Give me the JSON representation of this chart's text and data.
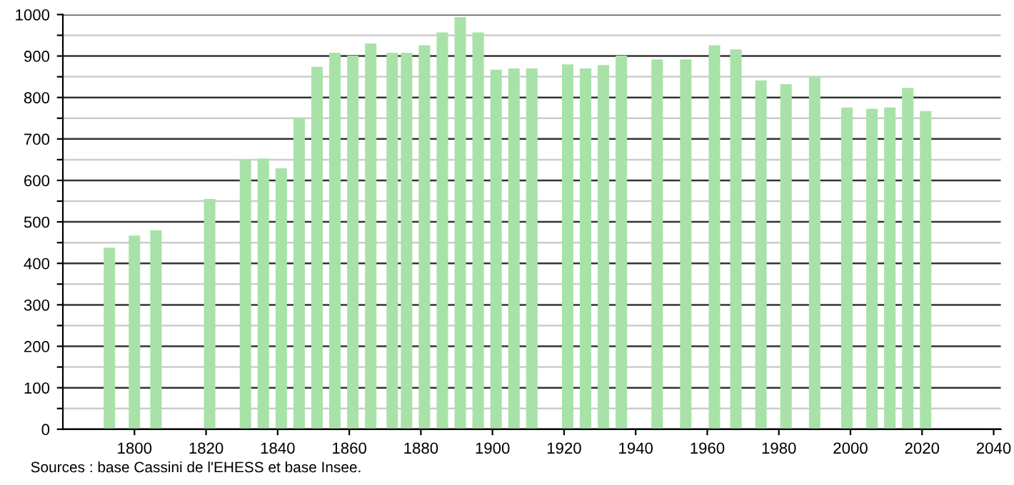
{
  "chart_data": {
    "type": "bar",
    "x": [
      1793,
      1800,
      1806,
      1821,
      1831,
      1836,
      1841,
      1846,
      1851,
      1856,
      1861,
      1866,
      1872,
      1876,
      1881,
      1886,
      1891,
      1896,
      1901,
      1906,
      1911,
      1921,
      1926,
      1931,
      1936,
      1946,
      1954,
      1962,
      1968,
      1975,
      1982,
      1990,
      1999,
      2006,
      2011,
      2016,
      2021
    ],
    "values": [
      438,
      467,
      480,
      555,
      649,
      653,
      629,
      750,
      874,
      908,
      901,
      930,
      908,
      908,
      926,
      957,
      994,
      957,
      867,
      870,
      870,
      880,
      870,
      878,
      901,
      892,
      892,
      926,
      916,
      841,
      832,
      849,
      776,
      773,
      776,
      823,
      767
    ],
    "color": "#a8e2a8",
    "xlim": [
      1780,
      2042
    ],
    "xticks": [
      1800,
      1820,
      1840,
      1860,
      1880,
      1900,
      1920,
      1940,
      1960,
      1980,
      2000,
      2020,
      2040
    ],
    "ylim": [
      0,
      1000
    ],
    "yticks": [
      0,
      {
        "value": 50,
        "label": null
      },
      100,
      {
        "value": 150,
        "label": null
      },
      200,
      {
        "value": 250,
        "label": null
      },
      300,
      {
        "value": 350,
        "label": null
      },
      400,
      {
        "value": 450,
        "label": null
      },
      500,
      {
        "value": 550,
        "label": null
      },
      600,
      {
        "value": 650,
        "label": null
      },
      700,
      {
        "value": 750,
        "label": null
      },
      800,
      {
        "value": 850,
        "label": null
      },
      900,
      {
        "value": 950,
        "label": null
      },
      1000
    ],
    "grid": "y",
    "annotations": [
      "Sources : base Cassini de l'EHESS et base Insee."
    ]
  }
}
